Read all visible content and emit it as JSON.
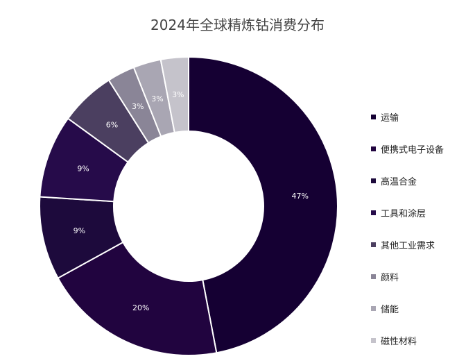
{
  "chart_data": {
    "type": "pie",
    "title": "2024年全球精炼钴消费分布",
    "categories": [
      "运输",
      "便携式电子设备",
      "高温合金",
      "工具和涂层",
      "其他工业需求",
      "颜料",
      "储能",
      "磁性材料"
    ],
    "values": [
      47,
      20,
      9,
      9,
      6,
      3,
      3,
      3
    ],
    "labels": [
      "47%",
      "20%",
      "9%",
      "9%",
      "6%",
      "3%",
      "3%",
      "3%"
    ],
    "colors": [
      "#150033",
      "#21043f",
      "#1d0a3c",
      "#260b4a",
      "#4b3f60",
      "#8a8597",
      "#a9a6b3",
      "#c5c3cb"
    ],
    "donut": true,
    "legend_position": "right",
    "legend_labels": [
      "运输",
      "便携式电子设备",
      "高温合金",
      "工具和涂层",
      "其他工业需求",
      "颜料",
      "储能",
      "磁性材料"
    ]
  }
}
